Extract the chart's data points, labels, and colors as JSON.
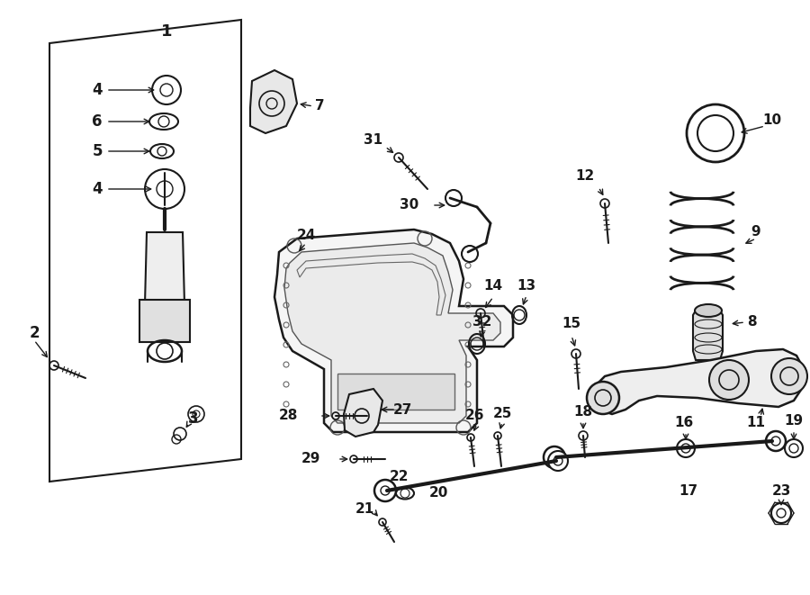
{
  "background_color": "#ffffff",
  "line_color": "#1a1a1a",
  "figsize": [
    9.0,
    6.61
  ],
  "dpi": 100
}
